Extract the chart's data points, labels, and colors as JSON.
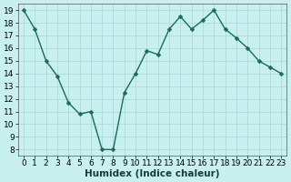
{
  "x": [
    0,
    1,
    2,
    3,
    4,
    5,
    6,
    7,
    8,
    9,
    10,
    11,
    12,
    13,
    14,
    15,
    16,
    17,
    18,
    19,
    20,
    21,
    22,
    23
  ],
  "y": [
    19,
    17.5,
    15,
    13.8,
    11.7,
    10.8,
    11,
    8,
    8,
    12.5,
    14,
    15.8,
    15.5,
    17.5,
    18.5,
    17.5,
    18.2,
    19,
    17.5,
    16.8,
    16,
    15,
    14.5,
    14
  ],
  "line_color": "#1a6b5a",
  "marker_color": "#1a6b5a",
  "bg_color": "#c8f0ee",
  "grid_color": "#b0dada",
  "xlabel": "Humidex (Indice chaleur)",
  "ylim": [
    7.5,
    19.5
  ],
  "xlim": [
    -0.5,
    23.5
  ],
  "yticks": [
    8,
    9,
    10,
    11,
    12,
    13,
    14,
    15,
    16,
    17,
    18,
    19
  ],
  "xticks": [
    0,
    1,
    2,
    3,
    4,
    5,
    6,
    7,
    8,
    9,
    10,
    11,
    12,
    13,
    14,
    15,
    16,
    17,
    18,
    19,
    20,
    21,
    22,
    23
  ],
  "xtick_labels": [
    "0",
    "1",
    "2",
    "3",
    "4",
    "5",
    "6",
    "7",
    "8",
    "9",
    "10",
    "11",
    "12",
    "13",
    "14",
    "15",
    "16",
    "17",
    "18",
    "19",
    "20",
    "21",
    "22",
    "23"
  ],
  "xlabel_fontsize": 7.5,
  "tick_fontsize": 6.5,
  "line_width": 1.0,
  "marker_size": 2.5,
  "marker_style": "D"
}
